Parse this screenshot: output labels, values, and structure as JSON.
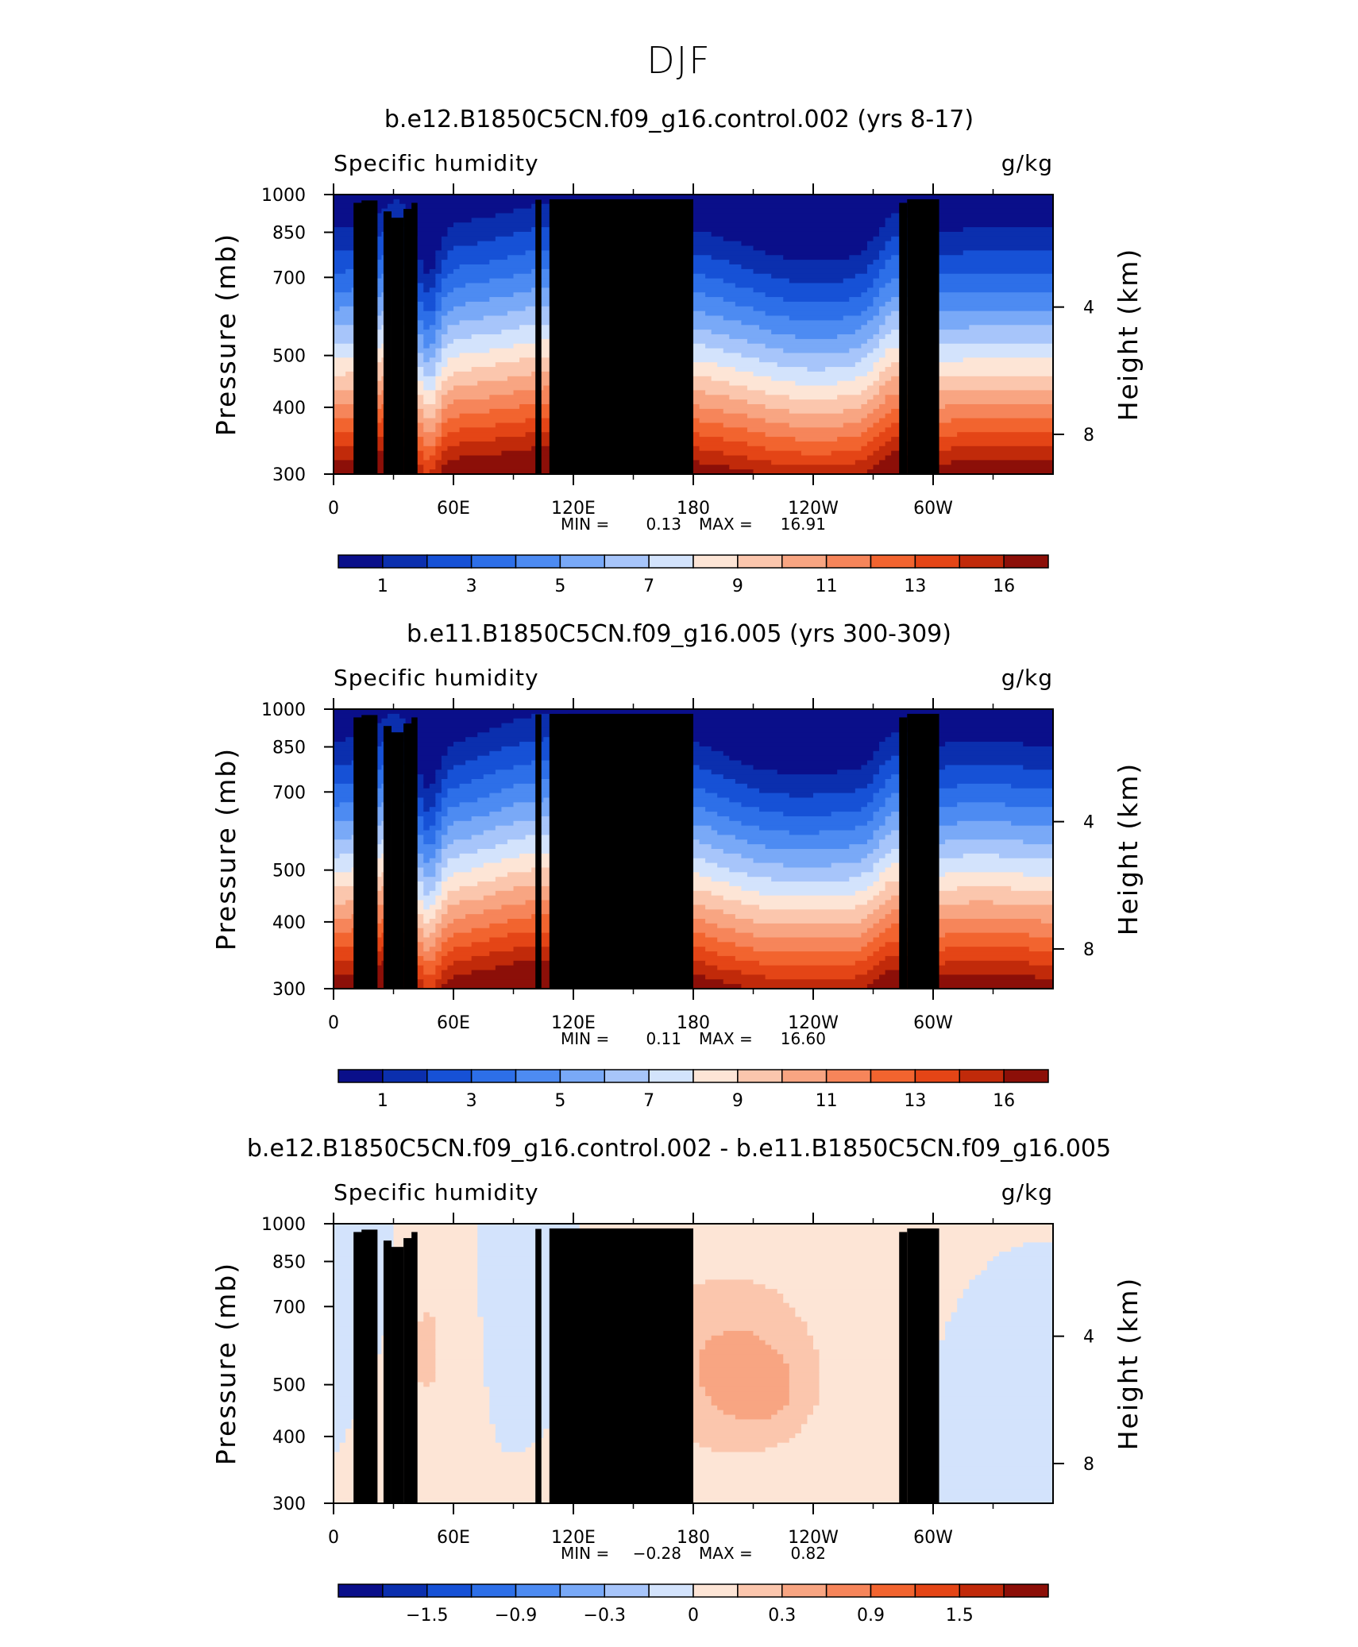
{
  "figure_title": "DJF",
  "colors": {
    "diverging_scale": [
      "#0a0f8a",
      "#0b2fae",
      "#1651d6",
      "#2d6fe8",
      "#4d8bf2",
      "#79a9f7",
      "#a7c5fa",
      "#d3e3fc",
      "#fde5d6",
      "#fbc6ad",
      "#f8a582",
      "#f6855a",
      "#f2642f",
      "#e44516",
      "#c12a0a",
      "#8c0f08"
    ],
    "topography": "#000000"
  },
  "chart_data": [
    {
      "type": "heatmap",
      "title": "b.e12.B1850C5CN.f09_g16.control.002 (yrs 8-17)",
      "field_label": "Specific humidity",
      "units": "g/kg",
      "ylabel": "Pressure (mb)",
      "ylabel_right": "Height (km)",
      "x_ticks": [
        "0",
        "60E",
        "120E",
        "180",
        "120W",
        "60W"
      ],
      "y_ticks": [
        "300",
        "400",
        "500",
        "700",
        "850",
        "1000"
      ],
      "right_ticks": [
        "8",
        "4"
      ],
      "x_range": [
        0,
        360
      ],
      "y_range": [
        1000,
        300
      ],
      "min_label": "MIN =",
      "min_value": "0.13",
      "max_label": "MAX =",
      "max_value": "16.91",
      "colorbar_labels": [
        "1",
        "3",
        "5",
        "7",
        "9",
        "11",
        "13",
        "16"
      ]
    },
    {
      "type": "heatmap",
      "title": "b.e11.B1850C5CN.f09_g16.005 (yrs 300-309)",
      "field_label": "Specific humidity",
      "units": "g/kg",
      "ylabel": "Pressure (mb)",
      "ylabel_right": "Height (km)",
      "x_ticks": [
        "0",
        "60E",
        "120E",
        "180",
        "120W",
        "60W"
      ],
      "y_ticks": [
        "300",
        "400",
        "500",
        "700",
        "850",
        "1000"
      ],
      "right_ticks": [
        "8",
        "4"
      ],
      "x_range": [
        0,
        360
      ],
      "y_range": [
        1000,
        300
      ],
      "min_label": "MIN =",
      "min_value": "0.11",
      "max_label": "MAX =",
      "max_value": "16.60",
      "colorbar_labels": [
        "1",
        "3",
        "5",
        "7",
        "9",
        "11",
        "13",
        "16"
      ]
    },
    {
      "type": "heatmap",
      "title": "b.e12.B1850C5CN.f09_g16.control.002 - b.e11.B1850C5CN.f09_g16.005",
      "field_label": "Specific humidity",
      "units": "g/kg",
      "ylabel": "Pressure (mb)",
      "ylabel_right": "Height (km)",
      "x_ticks": [
        "0",
        "60E",
        "120E",
        "180",
        "120W",
        "60W"
      ],
      "y_ticks": [
        "300",
        "400",
        "500",
        "700",
        "850",
        "1000"
      ],
      "right_ticks": [
        "8",
        "4"
      ],
      "x_range": [
        0,
        360
      ],
      "y_range": [
        1000,
        300
      ],
      "min_label": "MIN =",
      "min_value": "−0.28",
      "max_label": "MAX =",
      "max_value": "0.82",
      "colorbar_labels": [
        "−1.5",
        "−0.9",
        "−0.3",
        "0",
        "0.3",
        "0.9",
        "1.5"
      ]
    }
  ]
}
